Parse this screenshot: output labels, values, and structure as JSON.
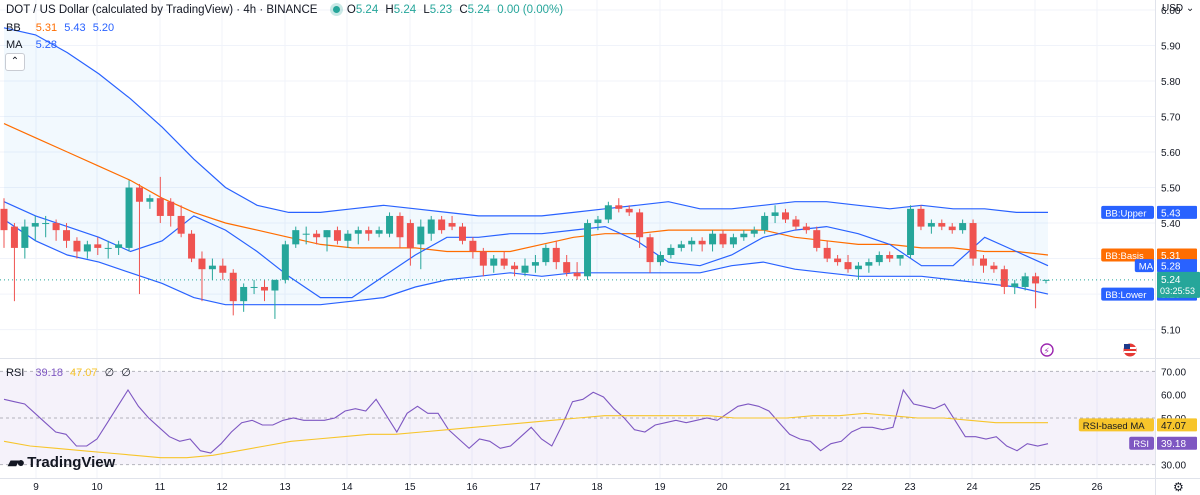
{
  "header": {
    "title": "DOT / US Dollar (calculated by TradingView) · 4h · BINANCE",
    "ohlc": {
      "O": "5.24",
      "H": "5.24",
      "L": "5.23",
      "C": "5.24",
      "change": "0.00 (0.00%)"
    }
  },
  "indicators": {
    "bb": {
      "label": "BB",
      "basis": "5.31",
      "upper": "5.43",
      "lower": "5.20"
    },
    "ma": {
      "label": "MA",
      "value": "5.28"
    },
    "rsi": {
      "label": "RSI",
      "value": "39.18",
      "ma": "47.07",
      "extra1": "∅",
      "extra2": "∅"
    }
  },
  "currency": "USD",
  "brand": "TradingView",
  "colors": {
    "up": "#26a69a",
    "down": "#ef5350",
    "bb_band": "#2962ff",
    "bb_basis": "#ff6d00",
    "bb_fill": "#2196f3",
    "rsi_line": "#7e57c2",
    "rsi_ma": "#f7c52b",
    "rsi_bg": "#7e57c2",
    "current_price": "#26a69a"
  },
  "chart_data": {
    "type": "candlestick",
    "interval": "4h",
    "price_ticks": [
      "5.10",
      "5.20",
      "5.30",
      "5.40",
      "5.50",
      "5.60",
      "5.70",
      "5.80",
      "5.90",
      "6.00"
    ],
    "price_range": [
      5.065,
      6.0
    ],
    "rsi_ticks": [
      "30.00",
      "40.00",
      "50.00",
      "60.00",
      "70.00"
    ],
    "rsi_range": [
      26,
      74
    ],
    "date_ticks": [
      "9",
      "10",
      "11",
      "12",
      "13",
      "14",
      "15",
      "16",
      "17",
      "18",
      "19",
      "20",
      "21",
      "22",
      "23",
      "24",
      "25",
      "26"
    ],
    "date_tick_x": [
      36,
      97,
      160,
      222,
      285,
      347,
      410,
      472,
      535,
      597,
      660,
      722,
      785,
      847,
      910,
      972,
      1035,
      1097
    ],
    "candle_x_start": 4,
    "candle_step": 10.42,
    "candles": [
      {
        "o": 5.44,
        "h": 5.47,
        "l": 5.33,
        "c": 5.38
      },
      {
        "o": 5.39,
        "h": 5.4,
        "l": 5.18,
        "c": 5.33
      },
      {
        "o": 5.33,
        "h": 5.41,
        "l": 5.3,
        "c": 5.39
      },
      {
        "o": 5.39,
        "h": 5.42,
        "l": 5.35,
        "c": 5.4
      },
      {
        "o": 5.4,
        "h": 5.42,
        "l": 5.36,
        "c": 5.4
      },
      {
        "o": 5.4,
        "h": 5.41,
        "l": 5.35,
        "c": 5.38
      },
      {
        "o": 5.38,
        "h": 5.4,
        "l": 5.33,
        "c": 5.35
      },
      {
        "o": 5.35,
        "h": 5.36,
        "l": 5.3,
        "c": 5.32
      },
      {
        "o": 5.32,
        "h": 5.35,
        "l": 5.3,
        "c": 5.34
      },
      {
        "o": 5.34,
        "h": 5.36,
        "l": 5.31,
        "c": 5.33
      },
      {
        "o": 5.33,
        "h": 5.35,
        "l": 5.3,
        "c": 5.33
      },
      {
        "o": 5.33,
        "h": 5.35,
        "l": 5.31,
        "c": 5.34
      },
      {
        "o": 5.33,
        "h": 5.52,
        "l": 5.32,
        "c": 5.5
      },
      {
        "o": 5.5,
        "h": 5.51,
        "l": 5.2,
        "c": 5.46
      },
      {
        "o": 5.46,
        "h": 5.48,
        "l": 5.44,
        "c": 5.47
      },
      {
        "o": 5.47,
        "h": 5.53,
        "l": 5.4,
        "c": 5.42
      },
      {
        "o": 5.46,
        "h": 5.47,
        "l": 5.39,
        "c": 5.42
      },
      {
        "o": 5.42,
        "h": 5.45,
        "l": 5.36,
        "c": 5.37
      },
      {
        "o": 5.37,
        "h": 5.38,
        "l": 5.29,
        "c": 5.3
      },
      {
        "o": 5.3,
        "h": 5.32,
        "l": 5.18,
        "c": 5.27
      },
      {
        "o": 5.27,
        "h": 5.3,
        "l": 5.24,
        "c": 5.28
      },
      {
        "o": 5.28,
        "h": 5.3,
        "l": 5.24,
        "c": 5.26
      },
      {
        "o": 5.26,
        "h": 5.27,
        "l": 5.14,
        "c": 5.18
      },
      {
        "o": 5.18,
        "h": 5.23,
        "l": 5.15,
        "c": 5.22
      },
      {
        "o": 5.22,
        "h": 5.24,
        "l": 5.2,
        "c": 5.22
      },
      {
        "o": 5.22,
        "h": 5.24,
        "l": 5.18,
        "c": 5.21
      },
      {
        "o": 5.21,
        "h": 5.24,
        "l": 5.13,
        "c": 5.24
      },
      {
        "o": 5.24,
        "h": 5.35,
        "l": 5.23,
        "c": 5.34
      },
      {
        "o": 5.34,
        "h": 5.39,
        "l": 5.33,
        "c": 5.38
      },
      {
        "o": 5.37,
        "h": 5.39,
        "l": 5.34,
        "c": 5.37
      },
      {
        "o": 5.37,
        "h": 5.38,
        "l": 5.34,
        "c": 5.36
      },
      {
        "o": 5.36,
        "h": 5.38,
        "l": 5.32,
        "c": 5.38
      },
      {
        "o": 5.38,
        "h": 5.39,
        "l": 5.34,
        "c": 5.35
      },
      {
        "o": 5.35,
        "h": 5.38,
        "l": 5.33,
        "c": 5.37
      },
      {
        "o": 5.37,
        "h": 5.39,
        "l": 5.34,
        "c": 5.38
      },
      {
        "o": 5.38,
        "h": 5.39,
        "l": 5.35,
        "c": 5.37
      },
      {
        "o": 5.37,
        "h": 5.39,
        "l": 5.36,
        "c": 5.38
      },
      {
        "o": 5.37,
        "h": 5.43,
        "l": 5.36,
        "c": 5.42
      },
      {
        "o": 5.42,
        "h": 5.43,
        "l": 5.33,
        "c": 5.36
      },
      {
        "o": 5.4,
        "h": 5.41,
        "l": 5.28,
        "c": 5.33
      },
      {
        "o": 5.34,
        "h": 5.41,
        "l": 5.27,
        "c": 5.39
      },
      {
        "o": 5.37,
        "h": 5.42,
        "l": 5.35,
        "c": 5.41
      },
      {
        "o": 5.41,
        "h": 5.42,
        "l": 5.37,
        "c": 5.38
      },
      {
        "o": 5.4,
        "h": 5.42,
        "l": 5.38,
        "c": 5.39
      },
      {
        "o": 5.39,
        "h": 5.4,
        "l": 5.34,
        "c": 5.35
      },
      {
        "o": 5.35,
        "h": 5.36,
        "l": 5.3,
        "c": 5.32
      },
      {
        "o": 5.32,
        "h": 5.33,
        "l": 5.25,
        "c": 5.28
      },
      {
        "o": 5.28,
        "h": 5.31,
        "l": 5.26,
        "c": 5.3
      },
      {
        "o": 5.3,
        "h": 5.32,
        "l": 5.27,
        "c": 5.28
      },
      {
        "o": 5.28,
        "h": 5.29,
        "l": 5.25,
        "c": 5.27
      },
      {
        "o": 5.26,
        "h": 5.3,
        "l": 5.25,
        "c": 5.28
      },
      {
        "o": 5.28,
        "h": 5.31,
        "l": 5.26,
        "c": 5.29
      },
      {
        "o": 5.29,
        "h": 5.34,
        "l": 5.28,
        "c": 5.33
      },
      {
        "o": 5.33,
        "h": 5.35,
        "l": 5.27,
        "c": 5.29
      },
      {
        "o": 5.29,
        "h": 5.31,
        "l": 5.25,
        "c": 5.26
      },
      {
        "o": 5.26,
        "h": 5.29,
        "l": 5.24,
        "c": 5.25
      },
      {
        "o": 5.25,
        "h": 5.41,
        "l": 5.24,
        "c": 5.4
      },
      {
        "o": 5.4,
        "h": 5.42,
        "l": 5.38,
        "c": 5.41
      },
      {
        "o": 5.41,
        "h": 5.46,
        "l": 5.4,
        "c": 5.45
      },
      {
        "o": 5.45,
        "h": 5.47,
        "l": 5.43,
        "c": 5.44
      },
      {
        "o": 5.44,
        "h": 5.45,
        "l": 5.42,
        "c": 5.43
      },
      {
        "o": 5.43,
        "h": 5.44,
        "l": 5.33,
        "c": 5.36
      },
      {
        "o": 5.36,
        "h": 5.37,
        "l": 5.26,
        "c": 5.29
      },
      {
        "o": 5.29,
        "h": 5.32,
        "l": 5.28,
        "c": 5.31
      },
      {
        "o": 5.31,
        "h": 5.34,
        "l": 5.3,
        "c": 5.33
      },
      {
        "o": 5.33,
        "h": 5.35,
        "l": 5.32,
        "c": 5.34
      },
      {
        "o": 5.34,
        "h": 5.36,
        "l": 5.32,
        "c": 5.35
      },
      {
        "o": 5.35,
        "h": 5.36,
        "l": 5.32,
        "c": 5.34
      },
      {
        "o": 5.34,
        "h": 5.38,
        "l": 5.32,
        "c": 5.37
      },
      {
        "o": 5.37,
        "h": 5.38,
        "l": 5.33,
        "c": 5.34
      },
      {
        "o": 5.34,
        "h": 5.37,
        "l": 5.33,
        "c": 5.36
      },
      {
        "o": 5.36,
        "h": 5.38,
        "l": 5.35,
        "c": 5.37
      },
      {
        "o": 5.37,
        "h": 5.39,
        "l": 5.36,
        "c": 5.38
      },
      {
        "o": 5.38,
        "h": 5.43,
        "l": 5.37,
        "c": 5.42
      },
      {
        "o": 5.42,
        "h": 5.45,
        "l": 5.4,
        "c": 5.43
      },
      {
        "o": 5.43,
        "h": 5.44,
        "l": 5.4,
        "c": 5.41
      },
      {
        "o": 5.41,
        "h": 5.42,
        "l": 5.38,
        "c": 5.39
      },
      {
        "o": 5.39,
        "h": 5.4,
        "l": 5.37,
        "c": 5.38
      },
      {
        "o": 5.38,
        "h": 5.39,
        "l": 5.32,
        "c": 5.33
      },
      {
        "o": 5.33,
        "h": 5.35,
        "l": 5.29,
        "c": 5.3
      },
      {
        "o": 5.3,
        "h": 5.31,
        "l": 5.28,
        "c": 5.29
      },
      {
        "o": 5.29,
        "h": 5.31,
        "l": 5.26,
        "c": 5.27
      },
      {
        "o": 5.27,
        "h": 5.29,
        "l": 5.24,
        "c": 5.28
      },
      {
        "o": 5.28,
        "h": 5.3,
        "l": 5.26,
        "c": 5.29
      },
      {
        "o": 5.29,
        "h": 5.32,
        "l": 5.28,
        "c": 5.31
      },
      {
        "o": 5.31,
        "h": 5.32,
        "l": 5.29,
        "c": 5.3
      },
      {
        "o": 5.3,
        "h": 5.31,
        "l": 5.28,
        "c": 5.31
      },
      {
        "o": 5.31,
        "h": 5.45,
        "l": 5.3,
        "c": 5.44
      },
      {
        "o": 5.44,
        "h": 5.45,
        "l": 5.38,
        "c": 5.39
      },
      {
        "o": 5.39,
        "h": 5.41,
        "l": 5.37,
        "c": 5.4
      },
      {
        "o": 5.4,
        "h": 5.41,
        "l": 5.38,
        "c": 5.39
      },
      {
        "o": 5.39,
        "h": 5.4,
        "l": 5.37,
        "c": 5.38
      },
      {
        "o": 5.38,
        "h": 5.41,
        "l": 5.37,
        "c": 5.4
      },
      {
        "o": 5.4,
        "h": 5.41,
        "l": 5.28,
        "c": 5.3
      },
      {
        "o": 5.3,
        "h": 5.31,
        "l": 5.26,
        "c": 5.28
      },
      {
        "o": 5.28,
        "h": 5.29,
        "l": 5.26,
        "c": 5.27
      },
      {
        "o": 5.27,
        "h": 5.28,
        "l": 5.2,
        "c": 5.22
      },
      {
        "o": 5.22,
        "h": 5.24,
        "l": 5.2,
        "c": 5.23
      },
      {
        "o": 5.22,
        "h": 5.26,
        "l": 5.21,
        "c": 5.25
      },
      {
        "o": 5.25,
        "h": 5.26,
        "l": 5.16,
        "c": 5.23
      },
      {
        "o": 5.24,
        "h": 5.24,
        "l": 5.23,
        "c": 5.24
      }
    ],
    "bb_upper": [
      5.95,
      5.93,
      5.88,
      5.82,
      5.75,
      5.67,
      5.58,
      5.5,
      5.45,
      5.43,
      5.43,
      5.44,
      5.45,
      5.44,
      5.43,
      5.42,
      5.42,
      5.42,
      5.43,
      5.44,
      5.45,
      5.46,
      5.44,
      5.44,
      5.45,
      5.46,
      5.46,
      5.45,
      5.44,
      5.45,
      5.44,
      5.44,
      5.43,
      5.43
    ],
    "bb_basis": [
      5.68,
      5.64,
      5.6,
      5.56,
      5.52,
      5.47,
      5.43,
      5.4,
      5.38,
      5.36,
      5.34,
      5.33,
      5.33,
      5.33,
      5.32,
      5.32,
      5.32,
      5.34,
      5.36,
      5.37,
      5.37,
      5.38,
      5.38,
      5.38,
      5.38,
      5.36,
      5.35,
      5.34,
      5.34,
      5.33,
      5.33,
      5.32,
      5.32,
      5.31
    ],
    "bb_lower": [
      5.41,
      5.35,
      5.31,
      5.29,
      5.26,
      5.23,
      5.19,
      5.17,
      5.17,
      5.17,
      5.17,
      5.18,
      5.19,
      5.22,
      5.24,
      5.25,
      5.26,
      5.25,
      5.26,
      5.26,
      5.26,
      5.26,
      5.26,
      5.28,
      5.29,
      5.27,
      5.26,
      5.25,
      5.25,
      5.25,
      5.24,
      5.23,
      5.22,
      5.2
    ],
    "ma": [
      5.46,
      5.42,
      5.39,
      5.36,
      5.32,
      5.35,
      5.42,
      5.38,
      5.32,
      5.25,
      5.19,
      5.19,
      5.25,
      5.31,
      5.36,
      5.36,
      5.37,
      5.37,
      5.38,
      5.39,
      5.35,
      5.29,
      5.28,
      5.31,
      5.36,
      5.38,
      5.39,
      5.37,
      5.34,
      5.28,
      5.28,
      5.36,
      5.32,
      5.28
    ],
    "rsi": [
      58,
      57,
      56,
      52,
      48,
      44,
      43,
      38,
      38,
      41,
      48,
      55,
      62,
      55,
      50,
      46,
      42,
      40,
      41,
      36,
      35,
      39,
      44,
      48,
      49,
      47,
      47,
      49,
      50,
      49,
      49,
      49,
      50,
      53,
      54,
      53,
      58,
      51,
      44,
      52,
      55,
      52,
      52,
      45,
      41,
      37,
      41,
      40,
      37,
      38,
      42,
      46,
      41,
      38,
      47,
      57,
      58,
      61,
      59,
      54,
      50,
      45,
      44,
      47,
      48,
      49,
      48,
      49,
      50,
      49,
      52,
      55,
      56,
      55,
      53,
      48,
      43,
      41,
      40,
      36,
      39,
      40,
      44,
      46,
      46,
      45,
      46,
      62,
      56,
      55,
      54,
      56,
      49,
      42,
      42,
      41,
      42,
      38,
      36,
      39,
      38,
      39
    ],
    "rsi_ma": [
      40,
      38,
      37,
      36,
      35,
      34,
      33,
      33,
      34,
      36,
      38,
      40,
      41,
      42,
      43,
      43,
      44,
      45,
      46,
      47,
      48,
      49,
      50,
      51,
      51,
      51,
      51,
      51,
      50,
      50,
      50,
      51,
      51,
      52,
      51,
      50,
      50,
      49,
      48,
      48,
      48
    ],
    "labels": {
      "bb_upper": "BB:Upper",
      "bb_basis": "BB:Basis",
      "ma": "MA",
      "bb_lower": "BB:Lower",
      "current_price": "5.24",
      "countdown": "03:25:53",
      "rsi_ma": "RSI-based MA",
      "rsi": "RSI"
    },
    "axis_label_values": {
      "rsi_ma": "47.07",
      "rsi": "39.18"
    }
  }
}
